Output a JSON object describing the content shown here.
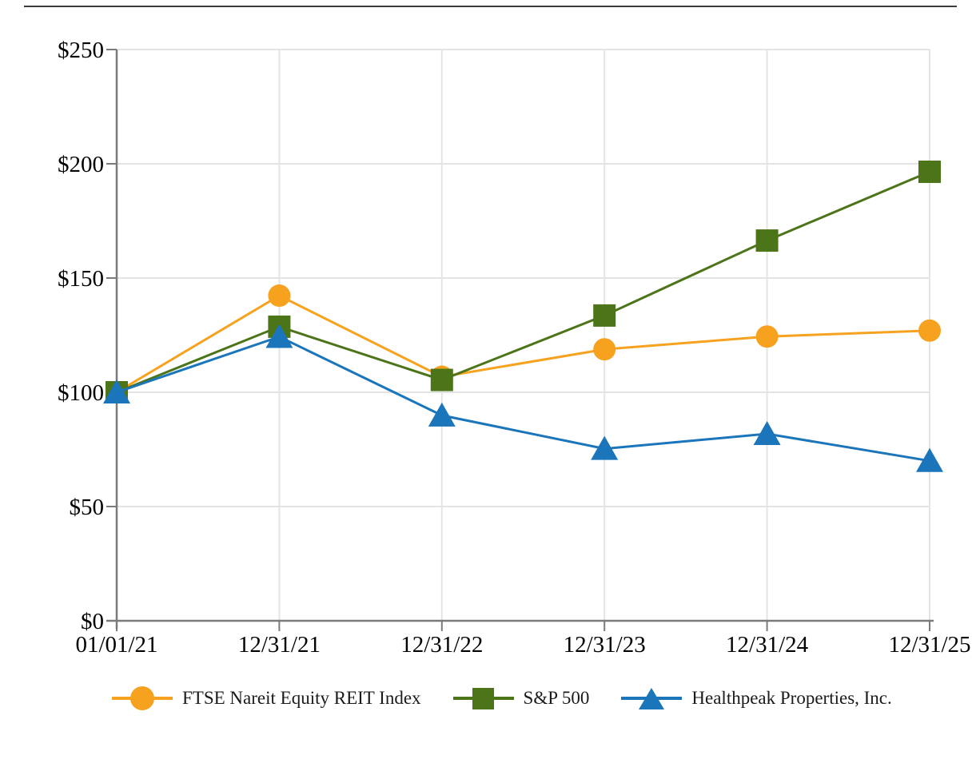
{
  "chart_data": {
    "type": "line",
    "title": "",
    "xlabel": "",
    "ylabel": "",
    "x_labels": [
      "01/01/21",
      "12/31/21",
      "12/31/22",
      "12/31/23",
      "12/31/24",
      "12/31/25"
    ],
    "y_tick_labels": [
      "$0",
      "$50",
      "$100",
      "$150",
      "$200",
      "$250"
    ],
    "y_tick_values": [
      0,
      50,
      100,
      150,
      200,
      250
    ],
    "ylim": [
      0,
      250
    ],
    "grid": true,
    "legend_position": "bottom",
    "colors": {
      "gridline": "#e4e4e4",
      "axis": "#7a7a7a",
      "text": "#000000"
    },
    "series": [
      {
        "name": "FTSE Nareit Equity REIT Index",
        "marker": "circle",
        "color": "#f6a21e",
        "values": [
          100,
          142.3,
          106.8,
          118.8,
          124.4,
          127.0
        ]
      },
      {
        "name": "S&P 500",
        "marker": "square",
        "color": "#4c7419",
        "values": [
          100,
          128.7,
          105.4,
          133.6,
          166.4,
          196.5
        ]
      },
      {
        "name": "Healthpeak Properties, Inc.",
        "marker": "triangle",
        "color": "#1b75bb",
        "values": [
          100,
          124.3,
          89.9,
          75.3,
          81.8,
          70.0
        ]
      }
    ]
  }
}
